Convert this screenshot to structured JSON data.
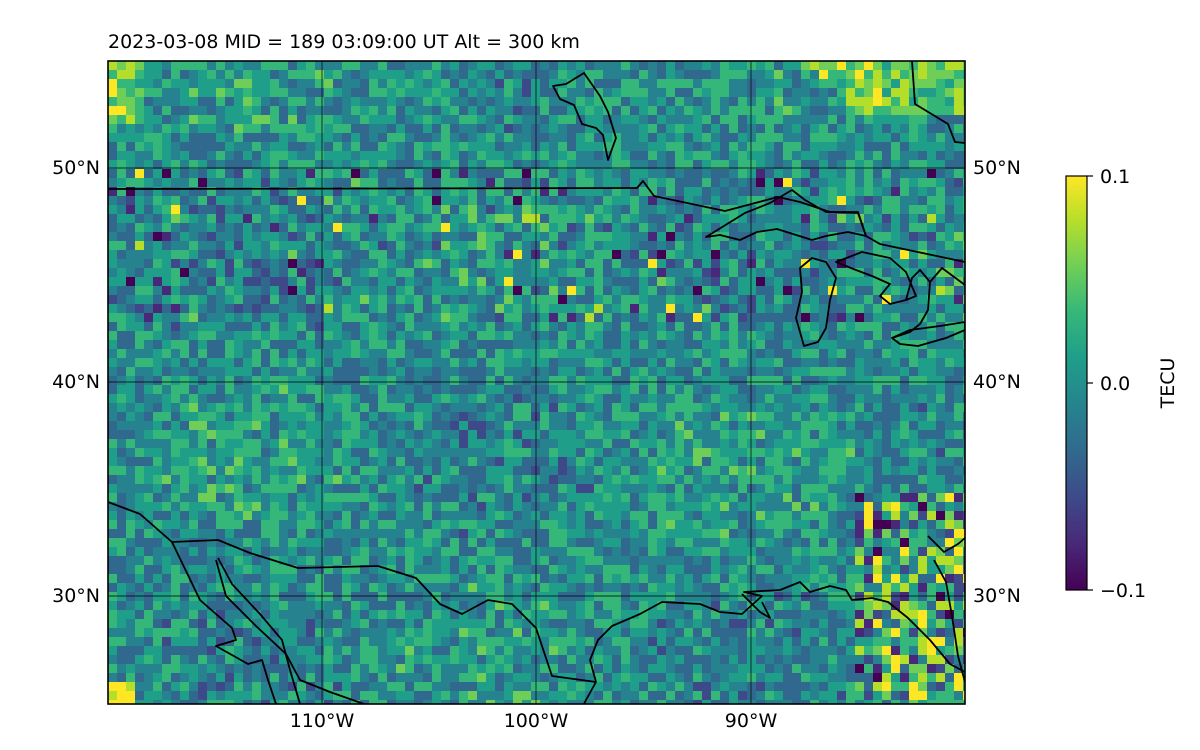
{
  "title": "2023-03-08  MID = 189    03:09:00  UT  Alt = 300 km",
  "colorbar": {
    "label": "TECU",
    "ticks": [
      "0.1",
      "0.0",
      "−0.1"
    ],
    "colormap": [
      "#440154",
      "#482878",
      "#3e4989",
      "#31688e",
      "#26828e",
      "#1f9e89",
      "#35b779",
      "#6ece58",
      "#b5de2b",
      "#fde725"
    ]
  },
  "map": {
    "lat_ticks": [
      "50°N",
      "40°N",
      "30°N"
    ],
    "lon_ticks": [
      "110°W",
      "100°W",
      "90°W"
    ],
    "extent": {
      "lon": [
        -120,
        -80
      ],
      "lat": [
        25,
        55
      ]
    },
    "colors": {
      "coast": "#000000",
      "grid": "#000000",
      "background": "#2a788e"
    }
  },
  "chart_data": {
    "type": "heatmap",
    "title": "2023-03-08  MID = 189    03:09:00  UT  Alt = 300 km",
    "xlabel": "",
    "ylabel": "",
    "colorbar_label": "TECU",
    "value_range": [
      -0.1,
      0.1
    ],
    "lon_range": [
      -120,
      -80
    ],
    "lat_range": [
      25,
      55
    ],
    "grid": true
  }
}
